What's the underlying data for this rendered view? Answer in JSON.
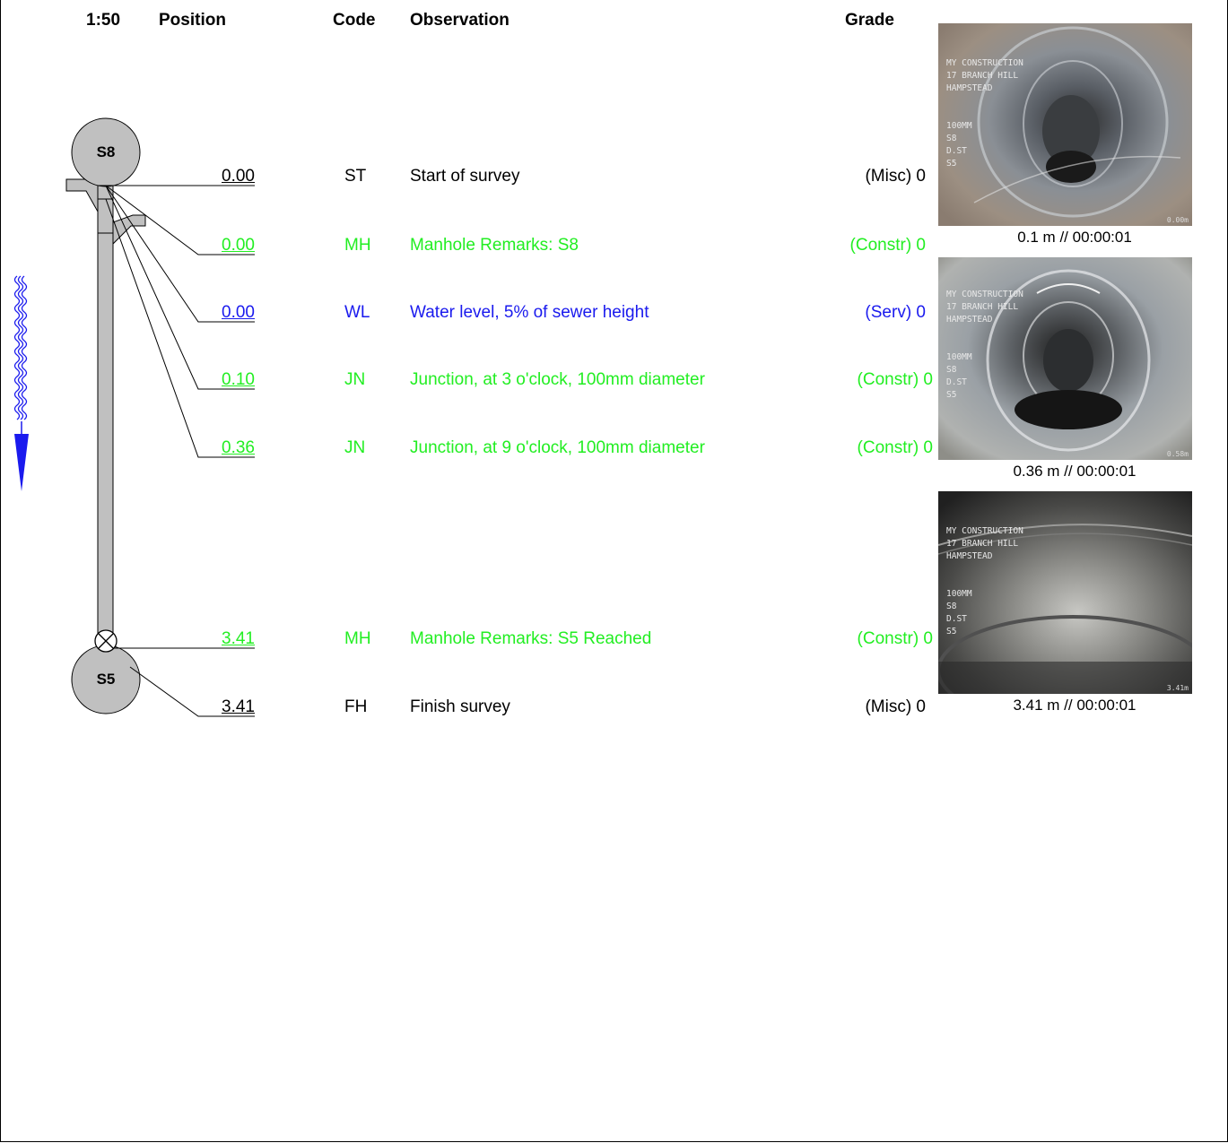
{
  "header": {
    "scale": "1:50",
    "position": "Position",
    "code": "Code",
    "observation": "Observation",
    "grade": "Grade"
  },
  "manholes": {
    "start": "S8",
    "end": "S5"
  },
  "colors": {
    "misc": "#000000",
    "constr": "#22ee22",
    "serv": "#1a1aee",
    "flow_arrow": "#1a1aee",
    "pipe": "#c0c0c0"
  },
  "rows": [
    {
      "position": "0.00",
      "code": "ST",
      "observation": "Start of survey",
      "grade": "(Misc) 0",
      "color": "black"
    },
    {
      "position": "0.00",
      "code": "MH",
      "observation": "Manhole Remarks: S8",
      "grade": "(Constr) 0",
      "color": "green"
    },
    {
      "position": "0.00",
      "code": "WL",
      "observation": "Water level, 5% of sewer height",
      "grade": "(Serv) 0",
      "color": "blue"
    },
    {
      "position": "0.10",
      "code": "JN",
      "observation": "Junction, at 3 o'clock, 100mm diameter",
      "grade": "(Constr) 0",
      "color": "green"
    },
    {
      "position": "0.36",
      "code": "JN",
      "observation": "Junction, at 9 o'clock, 100mm diameter",
      "grade": "(Constr) 0",
      "color": "green"
    },
    {
      "position": "3.41",
      "code": "MH",
      "observation": "Manhole Remarks: S5 Reached",
      "grade": "(Constr) 0",
      "color": "green"
    },
    {
      "position": "3.41",
      "code": "FH",
      "observation": "Finish survey",
      "grade": "(Misc) 0",
      "color": "black"
    }
  ],
  "photos": [
    {
      "overlay": "MY CONSTRUCTION\n17 BRANCH HILL\nHAMPSTEAD\n\n\n100MM\nS8\nD.ST\nS5",
      "distance": "0.00m",
      "caption": "0.1 m // 00:00:01"
    },
    {
      "overlay": "MY CONSTRUCTION\n17 BRANCH HILL\nHAMPSTEAD\n\n\n100MM\nS8\nD.ST\nS5",
      "distance": "0.58m",
      "caption": "0.36 m // 00:00:01"
    },
    {
      "overlay": "MY CONSTRUCTION\n17 BRANCH HILL\nHAMPSTEAD\n\n\n100MM\nS8\nD.ST\nS5",
      "distance": "3.41m",
      "caption": "3.41 m // 00:00:01"
    }
  ]
}
